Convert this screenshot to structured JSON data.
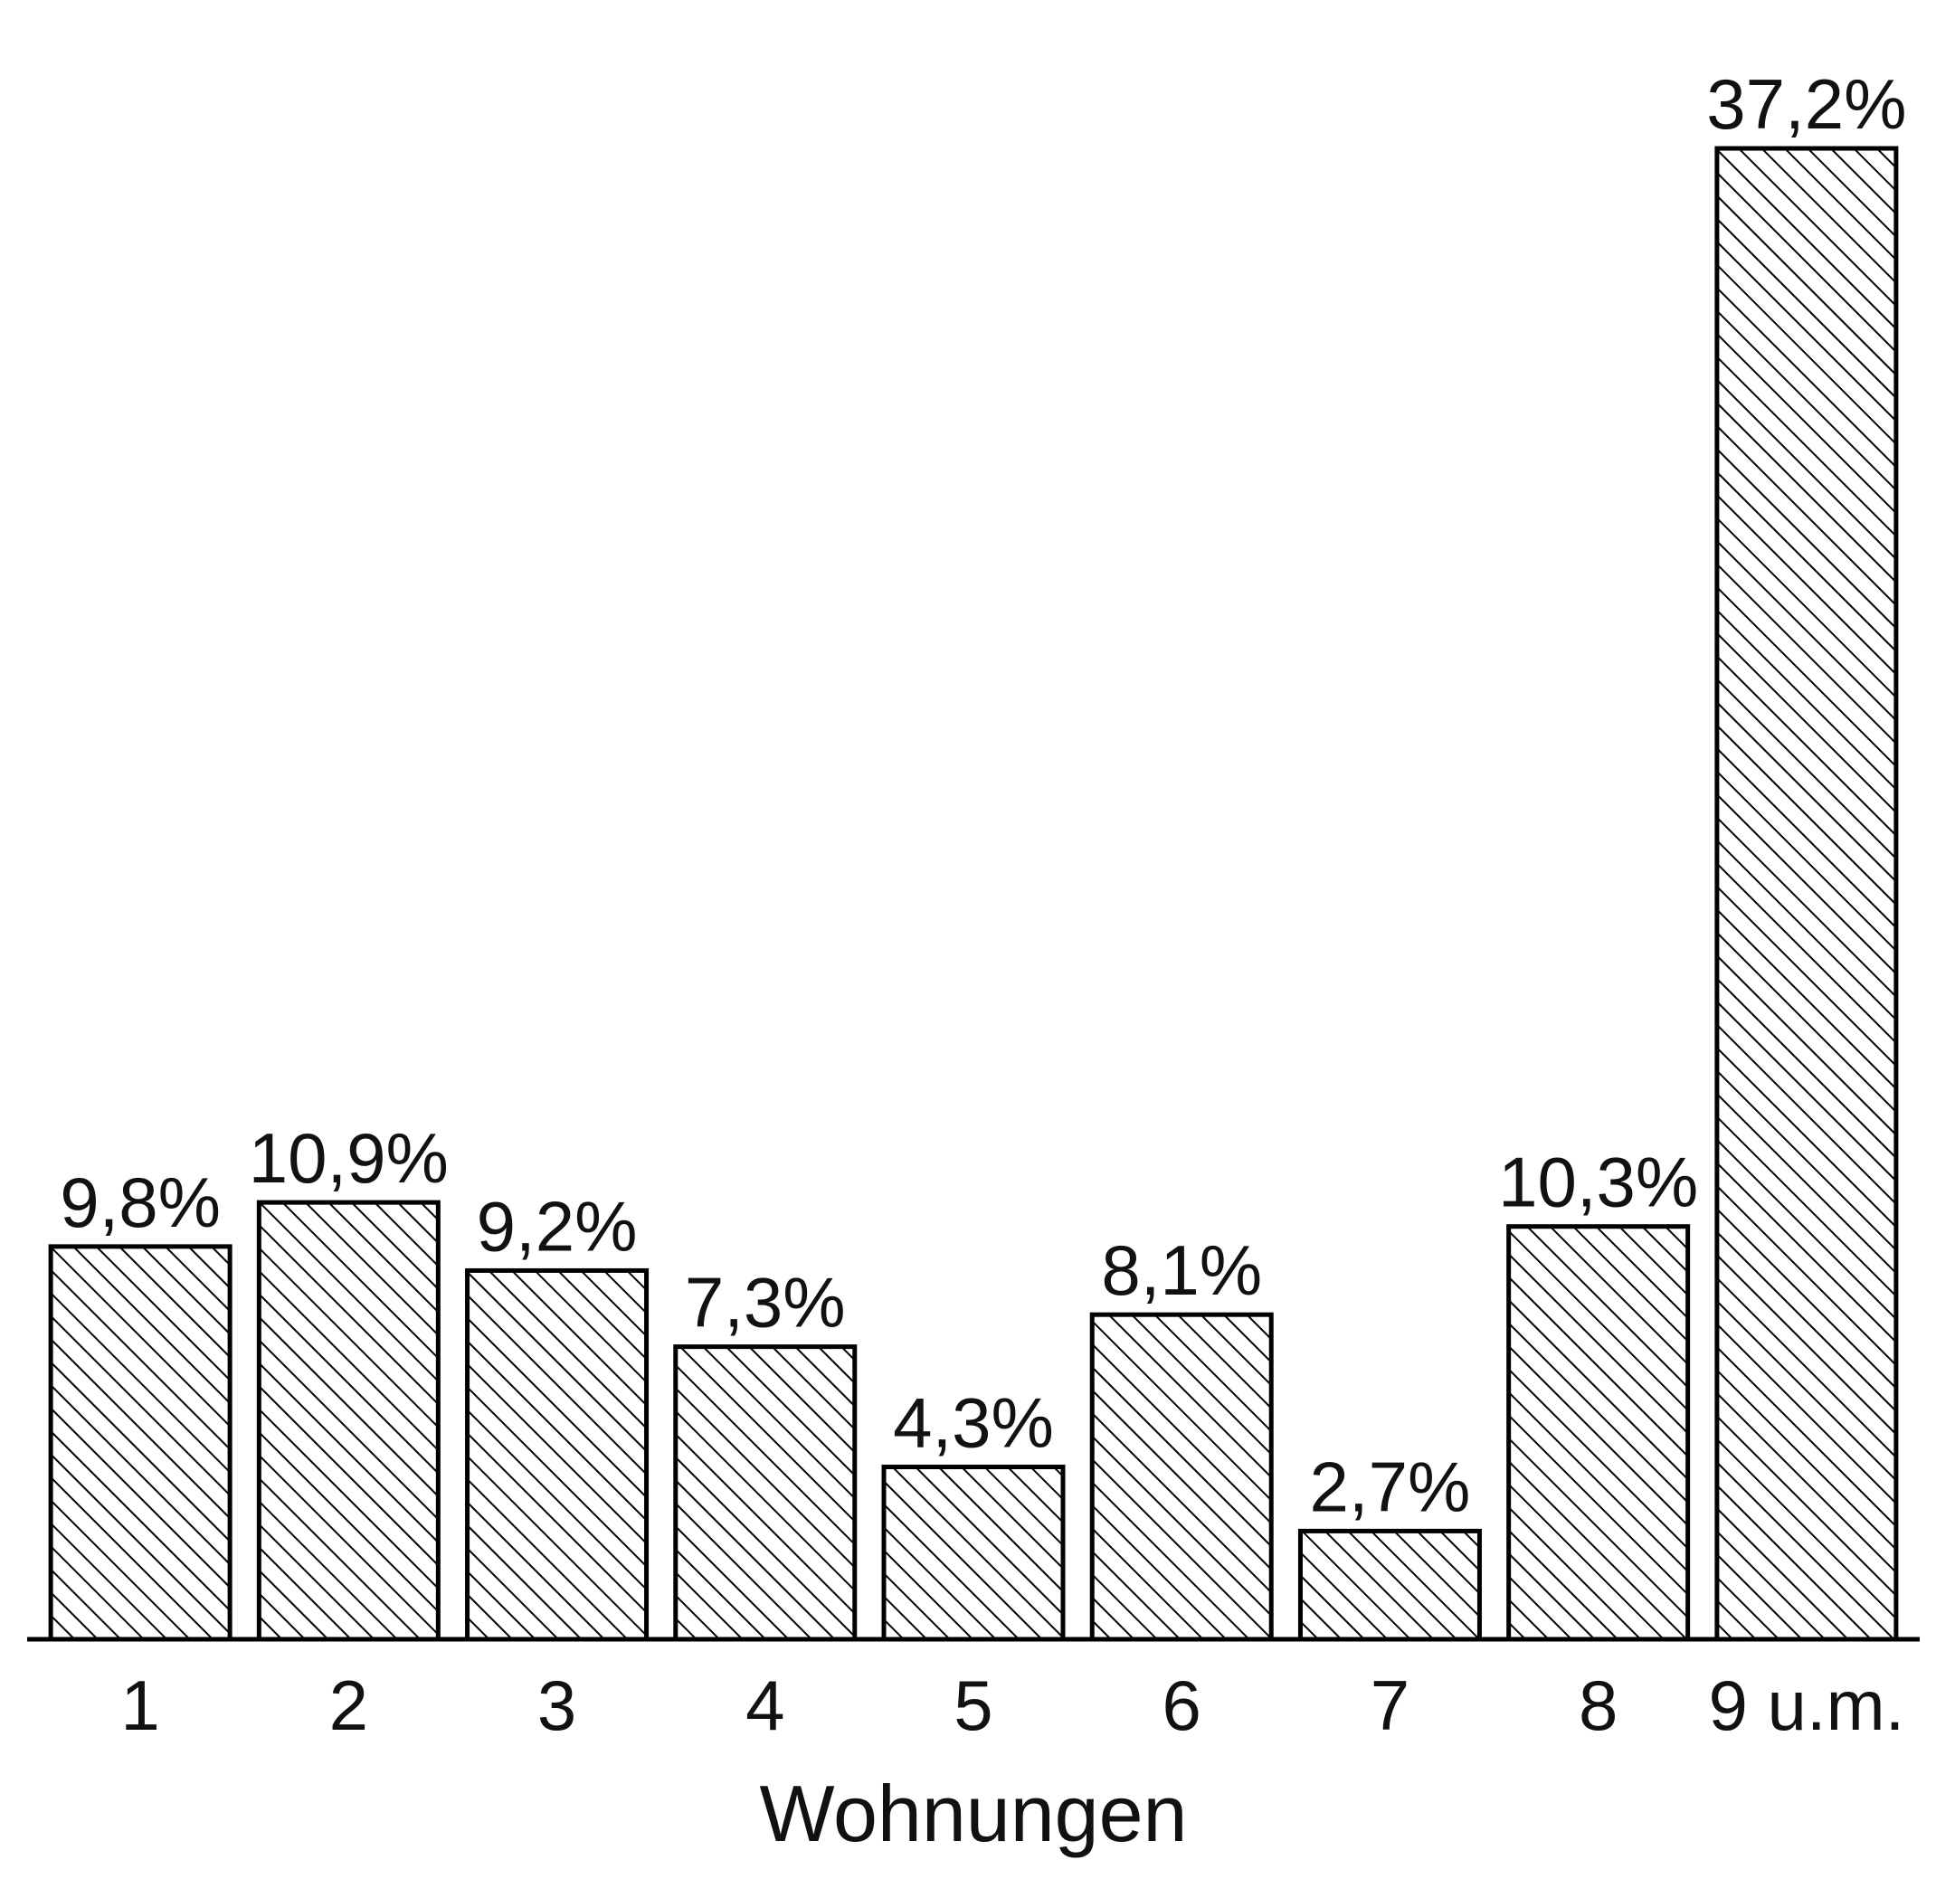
{
  "chart_data": {
    "type": "bar",
    "categories": [
      "1",
      "2",
      "3",
      "4",
      "5",
      "6",
      "7",
      "8",
      "9 u.m."
    ],
    "values": [
      9.8,
      10.9,
      9.2,
      7.3,
      4.3,
      8.1,
      2.7,
      10.3,
      37.2
    ],
    "value_labels": [
      "9,8%",
      "10,9%",
      "9,2%",
      "7,3%",
      "4,3%",
      "8,1%",
      "2,7%",
      "10,3%",
      "37,2%"
    ],
    "xlabel": "Wohnungen",
    "ylim": [
      0,
      40
    ],
    "grid": false,
    "legend": "none",
    "fill": "diagonal hatching",
    "colors": {
      "bar_stroke": "#000000",
      "hatch": "#000000",
      "background": "#ffffff"
    }
  }
}
